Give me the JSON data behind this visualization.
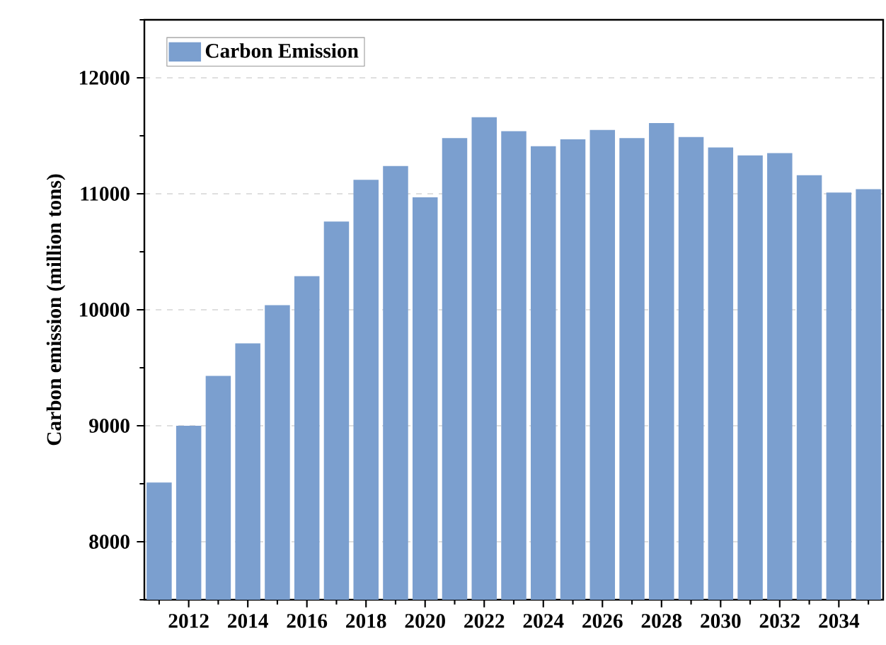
{
  "chart_data": {
    "type": "bar",
    "ylabel": "Carbon emission (million tons)",
    "x": [
      2011,
      2012,
      2013,
      2014,
      2015,
      2016,
      2017,
      2018,
      2019,
      2020,
      2021,
      2022,
      2023,
      2024,
      2025,
      2026,
      2027,
      2028,
      2029,
      2030,
      2031,
      2032,
      2033,
      2034,
      2035
    ],
    "series": [
      {
        "name": "Carbon Emission",
        "color": "#7b9fcf",
        "values": [
          8510,
          9000,
          9430,
          9710,
          10040,
          10290,
          10760,
          11120,
          11240,
          10970,
          11480,
          11660,
          11540,
          11410,
          11470,
          11550,
          11480,
          11610,
          11490,
          11400,
          11330,
          11350,
          11160,
          11010,
          11040
        ]
      }
    ],
    "xlim": [
      2010.5,
      2035.5
    ],
    "xticks": [
      {
        "value": 2011,
        "label": null
      },
      2012,
      {
        "value": 2013,
        "label": null
      },
      2014,
      {
        "value": 2015,
        "label": null
      },
      2016,
      {
        "value": 2017,
        "label": null
      },
      2018,
      {
        "value": 2019,
        "label": null
      },
      2020,
      {
        "value": 2021,
        "label": null
      },
      2022,
      {
        "value": 2023,
        "label": null
      },
      2024,
      {
        "value": 2025,
        "label": null
      },
      2026,
      {
        "value": 2027,
        "label": null
      },
      2028,
      {
        "value": 2029,
        "label": null
      },
      2030,
      {
        "value": 2031,
        "label": null
      },
      2032,
      {
        "value": 2033,
        "label": null
      },
      2034,
      {
        "value": 2035,
        "label": null
      }
    ],
    "ylim": [
      7500,
      12500
    ],
    "yticks": [
      {
        "value": 7500,
        "label": null
      },
      8000,
      {
        "value": 8500,
        "label": null
      },
      9000,
      {
        "value": 9500,
        "label": null
      },
      10000,
      {
        "value": 10500,
        "label": null
      },
      11000,
      {
        "value": 11500,
        "label": null
      },
      12000,
      {
        "value": 12500,
        "label": null
      }
    ],
    "grid": "y",
    "legend": "top left"
  }
}
